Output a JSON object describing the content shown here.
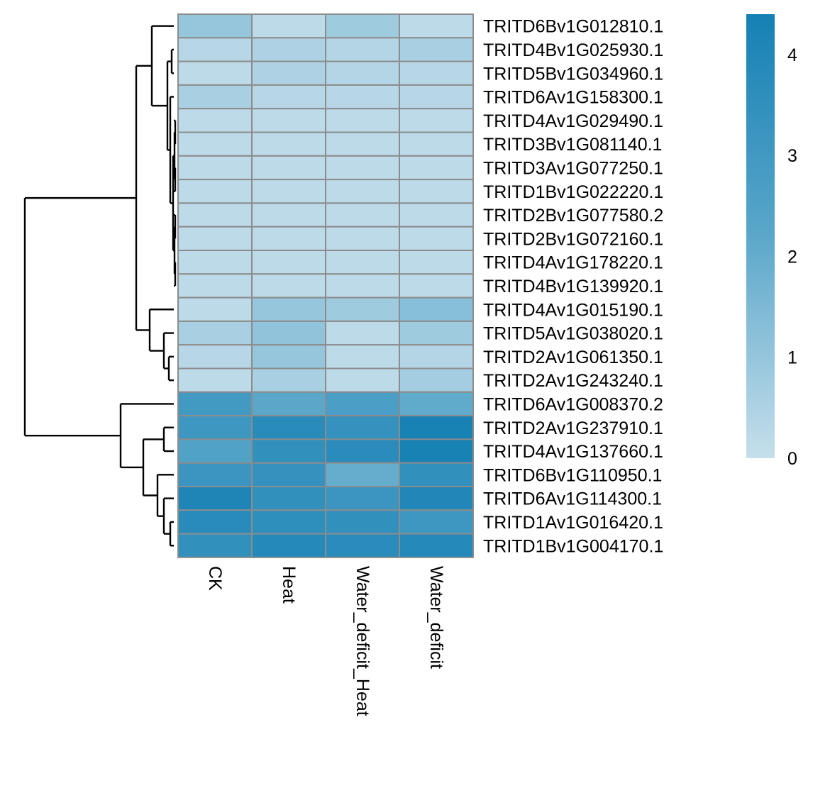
{
  "chart_data": {
    "type": "heatmap",
    "columns": [
      "CK",
      "Heat",
      "Water_deficit_Heat",
      "Water_deficit"
    ],
    "rows": [
      "TRITD6Bv1G012810.1",
      "TRITD4Bv1G025930.1",
      "TRITD5Bv1G034960.1",
      "TRITD6Av1G158300.1",
      "TRITD4Av1G029490.1",
      "TRITD3Bv1G081140.1",
      "TRITD3Av1G077250.1",
      "TRITD1Bv1G022220.1",
      "TRITD2Bv1G077580.2",
      "TRITD2Bv1G072160.1",
      "TRITD4Av1G178220.1",
      "TRITD4Bv1G139920.1",
      "TRITD4Av1G015190.1",
      "TRITD5Av1G038020.1",
      "TRITD2Av1G061350.1",
      "TRITD2Av1G243240.1",
      "TRITD6Av1G008370.2",
      "TRITD2Av1G237910.1",
      "TRITD4Av1G137660.1",
      "TRITD6Bv1G110950.1",
      "TRITD6Av1G114300.1",
      "TRITD1Av1G016420.1",
      "TRITD1Bv1G004170.1"
    ],
    "values": [
      [
        1.0,
        0.2,
        0.8,
        0.2
      ],
      [
        0.3,
        0.5,
        0.4,
        0.6
      ],
      [
        0.2,
        0.5,
        0.4,
        0.3
      ],
      [
        0.6,
        0.3,
        0.3,
        0.3
      ],
      [
        0.2,
        0.2,
        0.2,
        0.2
      ],
      [
        0.2,
        0.2,
        0.2,
        0.2
      ],
      [
        0.2,
        0.2,
        0.2,
        0.2
      ],
      [
        0.2,
        0.2,
        0.2,
        0.2
      ],
      [
        0.2,
        0.2,
        0.2,
        0.2
      ],
      [
        0.2,
        0.2,
        0.2,
        0.2
      ],
      [
        0.2,
        0.2,
        0.2,
        0.2
      ],
      [
        0.2,
        0.2,
        0.2,
        0.2
      ],
      [
        0.2,
        1.0,
        0.8,
        1.3
      ],
      [
        0.6,
        1.1,
        0.2,
        0.8
      ],
      [
        0.3,
        1.0,
        0.2,
        0.4
      ],
      [
        0.2,
        0.6,
        0.2,
        0.7
      ],
      [
        3.0,
        2.2,
        2.7,
        2.1
      ],
      [
        3.1,
        3.8,
        3.4,
        4.3
      ],
      [
        2.5,
        3.5,
        3.7,
        4.3
      ],
      [
        3.2,
        3.4,
        2.0,
        3.5
      ],
      [
        4.1,
        3.5,
        3.2,
        4.0
      ],
      [
        3.8,
        3.6,
        3.5,
        3.1
      ],
      [
        3.5,
        3.9,
        3.7,
        3.9
      ]
    ],
    "row_order_leaves": [
      0,
      1,
      2,
      3,
      4,
      5,
      6,
      7,
      8,
      9,
      10,
      11,
      12,
      13,
      14,
      15,
      16,
      17,
      18,
      19,
      20,
      21,
      22
    ],
    "colorbar": {
      "range": [
        0,
        4.4
      ],
      "ticks": [
        0,
        1,
        2,
        3,
        4
      ],
      "tick_labels": [
        "0",
        "1",
        "2",
        "3",
        "4"
      ],
      "low_color": "#c6dfeb",
      "mid_color": "#5ba7ca",
      "high_color": "#1580b4"
    },
    "cell_border_color": "#8c8c8c",
    "dendrogram_color": "#000000",
    "title": "",
    "xlabel": "",
    "ylabel": ""
  }
}
